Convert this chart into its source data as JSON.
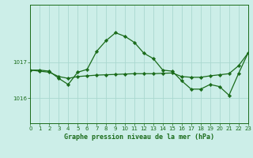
{
  "title": "Graphe pression niveau de la mer (hPa)",
  "background_color": "#cceee8",
  "line_color": "#1a6b1a",
  "grid_color": "#aad8d0",
  "xlim": [
    0,
    23
  ],
  "ylim": [
    1015.3,
    1018.6
  ],
  "ytick_vals": [
    1016,
    1017
  ],
  "xtick_vals": [
    0,
    1,
    2,
    3,
    4,
    5,
    6,
    7,
    8,
    9,
    10,
    11,
    12,
    13,
    14,
    15,
    16,
    17,
    18,
    19,
    20,
    21,
    22,
    23
  ],
  "line1_y": [
    1016.78,
    1016.78,
    1016.75,
    1016.55,
    1016.38,
    1016.72,
    1016.8,
    1017.3,
    1017.6,
    1017.82,
    1017.72,
    1017.55,
    1017.25,
    1017.1,
    1016.78,
    1016.75,
    1016.48,
    1016.25,
    1016.25,
    1016.38,
    1016.32,
    1016.08,
    1016.68,
    1017.25
  ],
  "line2_y": [
    1016.78,
    1016.75,
    1016.72,
    1016.6,
    1016.55,
    1016.6,
    1016.62,
    1016.64,
    1016.65,
    1016.66,
    1016.67,
    1016.68,
    1016.68,
    1016.68,
    1016.69,
    1016.7,
    1016.6,
    1016.58,
    1016.58,
    1016.62,
    1016.65,
    1016.68,
    1016.9,
    1017.25
  ]
}
